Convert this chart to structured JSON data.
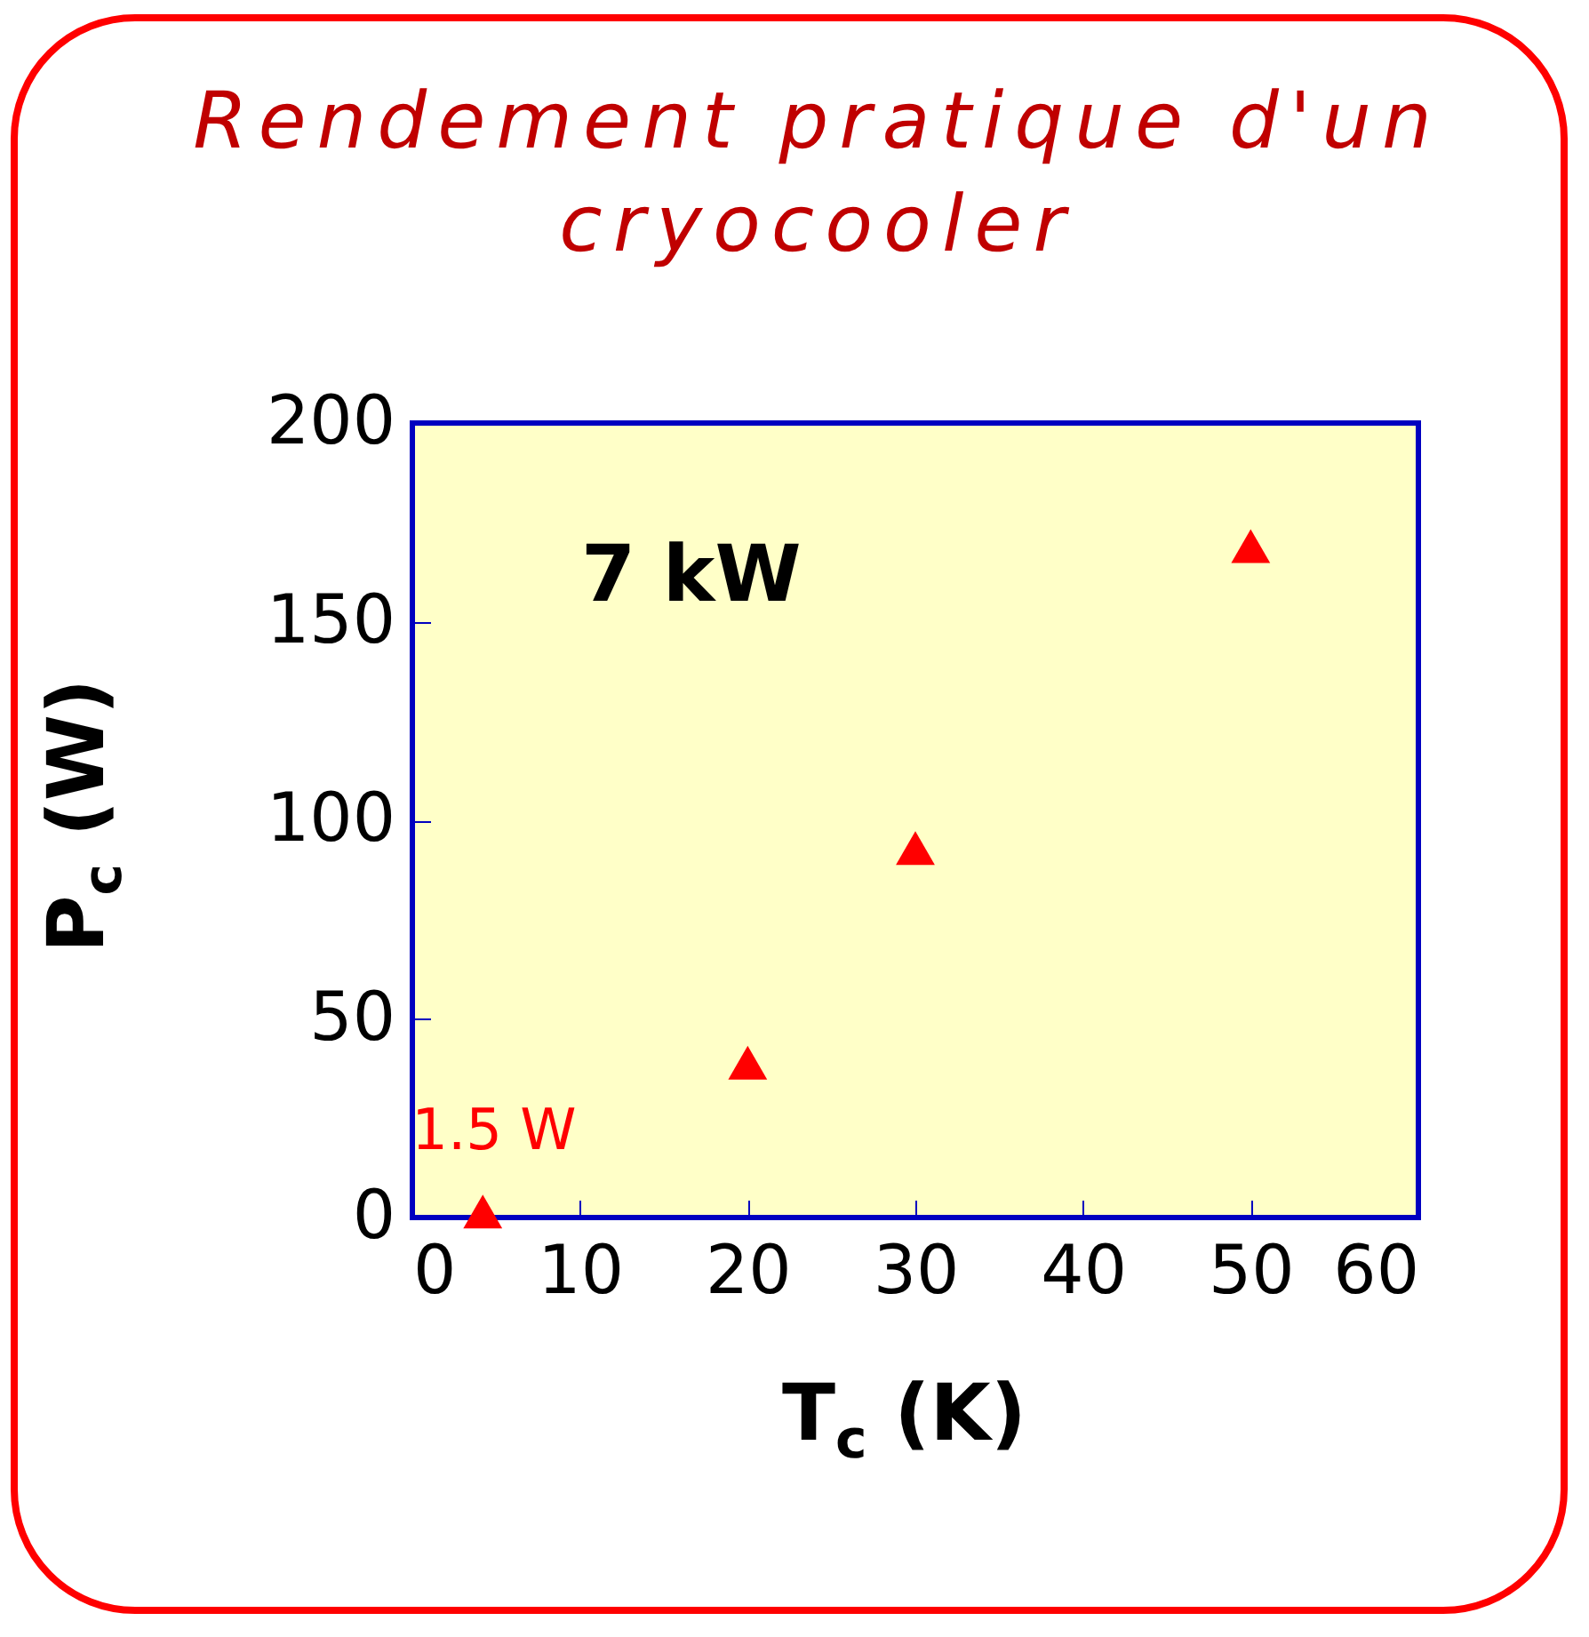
{
  "chart_data": {
    "type": "scatter",
    "title": "Rendement pratique d'un cryocooler",
    "xlabel": "T$_{c}$ (K)",
    "ylabel": "P$_{c}$ (W)",
    "x": [
      4.2,
      20,
      30,
      50
    ],
    "series": [
      {
        "color": "#ff0000",
        "values": [
          1.5,
          39,
          93,
          169
        ]
      }
    ],
    "marker": "triangle",
    "xlim": [
      0,
      60
    ],
    "ylim": [
      0,
      200
    ],
    "xticks": [
      0,
      10,
      20,
      30,
      40,
      50,
      60
    ],
    "yticks": [
      0,
      50,
      100,
      150,
      200
    ],
    "annotations": [
      "7 kW",
      {
        "text": "1.5 W",
        "x": 4.2,
        "y": 1.5
      }
    ],
    "grid": false
  }
}
